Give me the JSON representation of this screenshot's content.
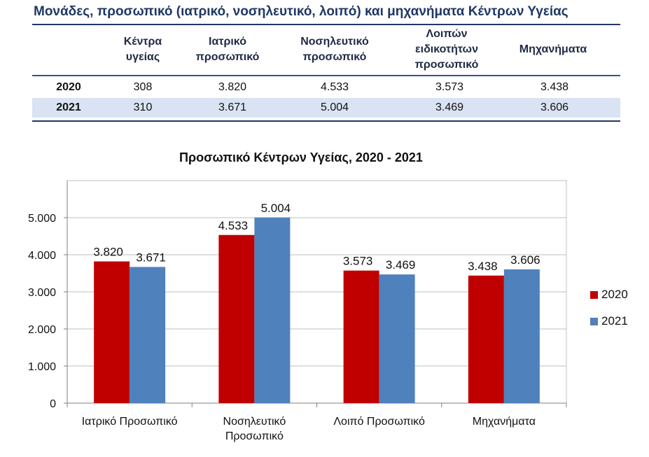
{
  "table": {
    "title": "Μονάδες, προσωπικό (ιατρικό, νοσηλευτικό, λοιπό) και μηχανήματα Κέντρων Υγείας",
    "columns": [
      "Κέντρα υγείας",
      "Ιατρικό προσωπικό",
      "Νοσηλευτικό προσωπικό",
      "Λοιπών ειδικοτήτων προσωπικό",
      "Μηχανήματα"
    ],
    "rows": [
      {
        "year": "2020",
        "values": [
          "308",
          "3.820",
          "4.533",
          "3.573",
          "3.438"
        ]
      },
      {
        "year": "2021",
        "values": [
          "310",
          "3.671",
          "5.004",
          "3.469",
          "3.606"
        ]
      }
    ]
  },
  "chart_data": {
    "type": "bar",
    "title": "Προσωπικό Κέντρων Υγείας, 2020 - 2021",
    "categories": [
      "Ιατρικό Προσωπικό",
      "Νοσηλευτικό Προσωπικό",
      "Λοιπό Προσωπικό",
      "Μηχανήματα"
    ],
    "series": [
      {
        "name": "2020",
        "color": "#c00000",
        "values": [
          3820,
          4533,
          3573,
          3438
        ],
        "labels": [
          "3.820",
          "4.533",
          "3.573",
          "3.438"
        ]
      },
      {
        "name": "2021",
        "color": "#4f81bd",
        "values": [
          3671,
          5004,
          3469,
          3606
        ],
        "labels": [
          "3.671",
          "5.004",
          "3.469",
          "3.606"
        ]
      }
    ],
    "yticks": [
      0,
      1000,
      2000,
      3000,
      4000,
      5000
    ],
    "ytick_labels": [
      "0",
      "1.000",
      "2.000",
      "3.000",
      "4.000",
      "5.000"
    ],
    "ylim": [
      0,
      6000
    ],
    "xlabel": "",
    "ylabel": "",
    "grid": true,
    "legend_position": "right"
  }
}
